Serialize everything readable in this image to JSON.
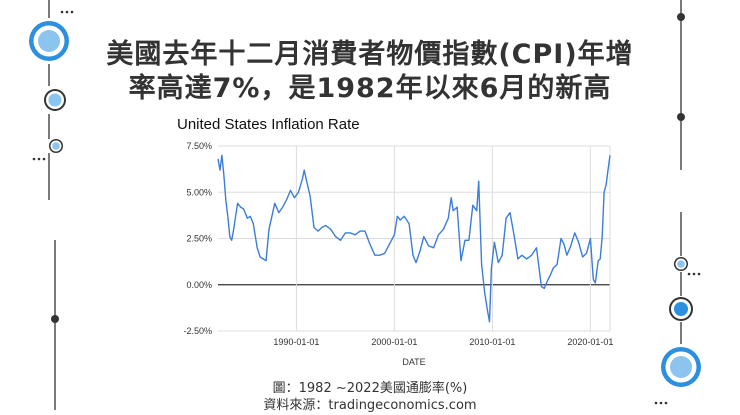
{
  "headline": {
    "line1": "美國去年十二月消費者物價指數(CPI)年增",
    "line2": "率高達7%，是1982年以來6月的新高"
  },
  "caption": {
    "line1": "圖：1982 ~2022美國通膨率(%)",
    "line2": "資料來源：tradingeconomics.com"
  },
  "colors": {
    "series": "#3b7dd8",
    "accent": "#2d8fe0",
    "accent_light": "#8cc4f0",
    "line": "#333333",
    "grid": "#dddddd"
  },
  "decor_icons": [
    "ellipsis-icon",
    "concentric-circle-icon",
    "dot-icon"
  ],
  "chart_data": {
    "type": "line",
    "title": "United States Inflation Rate",
    "xlabel": "DATE",
    "ylabel": "",
    "xlim": [
      1982.0,
      2022.0
    ],
    "ylim": [
      -2.5,
      7.5
    ],
    "yticks": [
      -2.5,
      0,
      2.5,
      5,
      7.5
    ],
    "ytick_labels": [
      "-2.50%",
      "0.00%",
      "2.50%",
      "5.00%",
      "7.50%"
    ],
    "xticks": [
      1990,
      2000,
      2010,
      2020
    ],
    "xtick_labels": [
      "1990-01-01",
      "2000-01-01",
      "2010-01-01",
      "2020-01-01"
    ],
    "grid": true,
    "series": [
      {
        "name": "Inflation Rate",
        "x": [
          1982.0,
          1982.2,
          1982.4,
          1982.6,
          1982.8,
          1983.0,
          1983.2,
          1983.4,
          1983.6,
          1983.8,
          1984.0,
          1984.3,
          1984.6,
          1985.0,
          1985.3,
          1985.6,
          1986.0,
          1986.3,
          1986.6,
          1986.9,
          1987.2,
          1987.5,
          1987.8,
          1988.2,
          1988.6,
          1989.0,
          1989.4,
          1989.8,
          1990.2,
          1990.6,
          1990.8,
          1991.0,
          1991.4,
          1991.8,
          1992.2,
          1992.6,
          1993.0,
          1993.5,
          1994.0,
          1994.5,
          1995.0,
          1995.5,
          1996.0,
          1996.5,
          1997.0,
          1997.5,
          1998.0,
          1998.5,
          1999.0,
          1999.5,
          2000.0,
          2000.3,
          2000.6,
          2001.0,
          2001.5,
          2001.9,
          2002.2,
          2002.6,
          2003.0,
          2003.5,
          2004.0,
          2004.5,
          2005.0,
          2005.5,
          2005.8,
          2006.0,
          2006.4,
          2006.8,
          2007.2,
          2007.6,
          2008.0,
          2008.4,
          2008.6,
          2008.9,
          2009.2,
          2009.5,
          2009.7,
          2009.9,
          2010.2,
          2010.6,
          2011.0,
          2011.4,
          2011.8,
          2012.2,
          2012.6,
          2013.0,
          2013.5,
          2014.0,
          2014.5,
          2015.0,
          2015.3,
          2015.6,
          2015.9,
          2016.2,
          2016.6,
          2017.0,
          2017.3,
          2017.6,
          2018.0,
          2018.4,
          2018.8,
          2019.2,
          2019.6,
          2020.0,
          2020.3,
          2020.5,
          2020.8,
          2021.0,
          2021.2,
          2021.4,
          2021.6,
          2021.8,
          2022.0
        ],
        "values": [
          6.8,
          6.2,
          7.0,
          5.9,
          4.6,
          3.7,
          2.6,
          2.4,
          3.0,
          3.7,
          4.4,
          4.2,
          4.1,
          3.6,
          3.7,
          3.3,
          2.0,
          1.5,
          1.4,
          1.3,
          3.0,
          3.7,
          4.4,
          3.9,
          4.2,
          4.6,
          5.1,
          4.7,
          5.0,
          5.7,
          6.2,
          5.7,
          4.8,
          3.1,
          2.9,
          3.1,
          3.2,
          3.0,
          2.6,
          2.4,
          2.8,
          2.8,
          2.7,
          2.9,
          2.9,
          2.2,
          1.6,
          1.6,
          1.7,
          2.2,
          2.7,
          3.7,
          3.5,
          3.7,
          3.3,
          1.6,
          1.2,
          1.8,
          2.6,
          2.1,
          2.0,
          2.7,
          3.0,
          3.6,
          4.7,
          4.0,
          4.2,
          1.3,
          2.4,
          2.4,
          4.3,
          4.0,
          5.6,
          1.1,
          -0.4,
          -1.4,
          -2.0,
          0.9,
          2.3,
          1.2,
          1.6,
          3.6,
          3.9,
          2.7,
          1.4,
          1.6,
          1.4,
          1.6,
          2.0,
          -0.1,
          -0.2,
          0.2,
          0.5,
          0.9,
          1.1,
          2.5,
          2.2,
          1.6,
          2.1,
          2.8,
          2.3,
          1.5,
          1.7,
          2.5,
          0.3,
          0.1,
          1.3,
          1.4,
          2.6,
          5.0,
          5.4,
          6.2,
          7.0
        ]
      }
    ]
  }
}
